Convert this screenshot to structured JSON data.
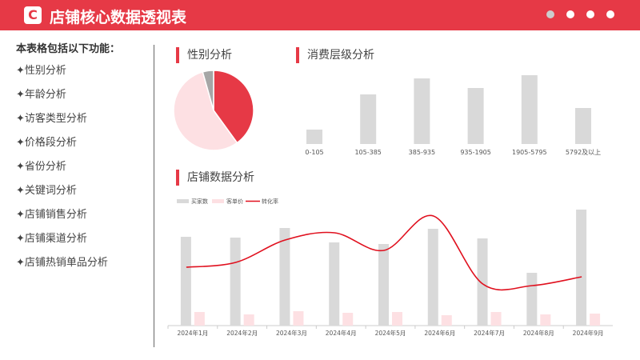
{
  "header": {
    "logo": "C",
    "title": "店铺核心数据透视表",
    "dots": [
      "#cccccc",
      "#ffffff",
      "#ffffff",
      "#ffffff"
    ]
  },
  "sidebar": {
    "intro": "本表格包括以下功能：",
    "items": [
      "✦性别分析",
      "✦年龄分析",
      "✦访客类型分析",
      "✦价格段分析",
      "✦省份分析",
      "✦关键词分析",
      "✦店铺销售分析",
      "✦店铺渠道分析",
      "✦店铺热销单品分析"
    ]
  },
  "sections": {
    "gender": "性别分析",
    "consumption": "消费层级分析",
    "store": "店铺数据分析"
  },
  "chart_data": [
    {
      "type": "pie",
      "values": [
        40,
        55.6,
        4.4
      ],
      "colors": [
        "#e63946",
        "#fde0e3",
        "#a6a6a6"
      ]
    },
    {
      "type": "bar",
      "categories": [
        "0-105",
        "105-385",
        "385-935",
        "935-1905",
        "1905-5795",
        "5792及以上"
      ],
      "values": [
        18,
        62,
        82,
        70,
        86,
        45
      ],
      "color": "#d9d9d9"
    },
    {
      "type": "bar+line",
      "categories": [
        "2024年1月",
        "2024年2月",
        "2024年3月",
        "2024年4月",
        "2024年5月",
        "2024年6月",
        "2024年7月",
        "2024年8月",
        "2024年9月"
      ],
      "series": [
        {
          "name": "买家数",
          "type": "bar",
          "color": "#d9d9d9",
          "values": [
            111,
            110,
            122,
            104,
            102,
            121,
            109,
            66,
            145
          ]
        },
        {
          "name": "客单价",
          "type": "bar",
          "color": "#fde0e3",
          "values": [
            17,
            14,
            18,
            16,
            17,
            13,
            17,
            14,
            15
          ]
        },
        {
          "name": "转化率",
          "type": "line",
          "color": "#e0101e",
          "values": [
            73,
            79,
            107,
            116,
            94,
            137,
            52,
            50,
            61
          ]
        }
      ],
      "legend": "top-left"
    }
  ]
}
